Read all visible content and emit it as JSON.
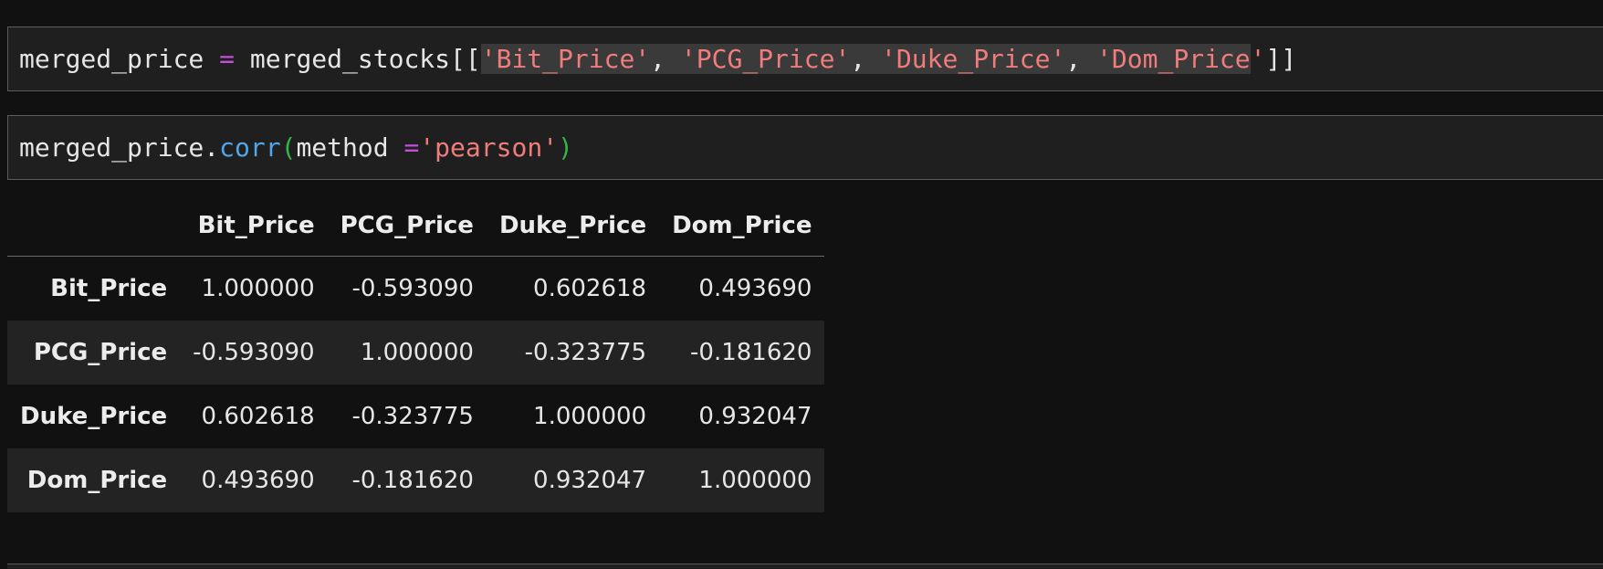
{
  "cells": [
    {
      "tokens": [
        {
          "text": "merged_price ",
          "cls": ""
        },
        {
          "text": "=",
          "cls": "tok-op"
        },
        {
          "text": " merged_stocks[[",
          "cls": ""
        },
        {
          "text": "'Bit_Price'",
          "cls": "tok-str tok-hl"
        },
        {
          "text": ", ",
          "cls": "tok-hl"
        },
        {
          "text": "'PCG_Price'",
          "cls": "tok-str tok-hl"
        },
        {
          "text": ", ",
          "cls": "tok-hl"
        },
        {
          "text": "'Duke_Price'",
          "cls": "tok-str tok-hl"
        },
        {
          "text": ", ",
          "cls": "tok-hl"
        },
        {
          "text": "'Dom_Price",
          "cls": "tok-str tok-hl"
        },
        {
          "text": "'",
          "cls": "tok-str"
        },
        {
          "text": "]]",
          "cls": ""
        }
      ]
    },
    {
      "tokens": [
        {
          "text": "merged_price.",
          "cls": ""
        },
        {
          "text": "corr",
          "cls": "tok-fn"
        },
        {
          "text": "(",
          "cls": "tok-paren"
        },
        {
          "text": "method ",
          "cls": ""
        },
        {
          "text": "=",
          "cls": "tok-op"
        },
        {
          "text": "'pearson'",
          "cls": "tok-str"
        },
        {
          "text": ")",
          "cls": "tok-paren"
        }
      ]
    }
  ],
  "table": {
    "columns": [
      "Bit_Price",
      "PCG_Price",
      "Duke_Price",
      "Dom_Price"
    ],
    "rows": [
      {
        "index": "Bit_Price",
        "values": [
          "1.000000",
          "-0.593090",
          "0.602618",
          "0.493690"
        ]
      },
      {
        "index": "PCG_Price",
        "values": [
          "-0.593090",
          "1.000000",
          "-0.323775",
          "-0.181620"
        ]
      },
      {
        "index": "Duke_Price",
        "values": [
          "0.602618",
          "-0.323775",
          "1.000000",
          "0.932047"
        ]
      },
      {
        "index": "Dom_Price",
        "values": [
          "0.493690",
          "-0.181620",
          "0.932047",
          "1.000000"
        ]
      }
    ]
  }
}
